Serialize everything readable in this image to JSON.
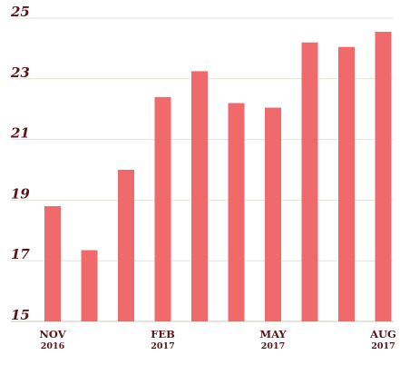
{
  "chart_data": {
    "type": "bar",
    "categories": [
      "2016-11",
      "2016-12",
      "2017-01",
      "2017-02",
      "2017-03",
      "2017-04",
      "2017-05",
      "2017-06",
      "2017-07",
      "2017-08"
    ],
    "values": [
      18.8,
      17.35,
      20.0,
      22.4,
      23.25,
      22.2,
      22.05,
      24.2,
      24.05,
      24.55
    ],
    "ylim": [
      15,
      25
    ],
    "yticks": [
      15,
      17,
      19,
      21,
      23,
      25
    ],
    "xtick_labels": [
      {
        "index": 0,
        "line1": "NOV",
        "line2": "2016"
      },
      {
        "index": 3,
        "line1": "FEB",
        "line2": "2017"
      },
      {
        "index": 6,
        "line1": "MAY",
        "line2": "2017"
      },
      {
        "index": 9,
        "line1": "AUG",
        "line2": "2017"
      }
    ],
    "bar_color": "#f06a6c",
    "text_color": "#5a1418",
    "grid": true,
    "title": "",
    "xlabel": "",
    "ylabel": ""
  }
}
